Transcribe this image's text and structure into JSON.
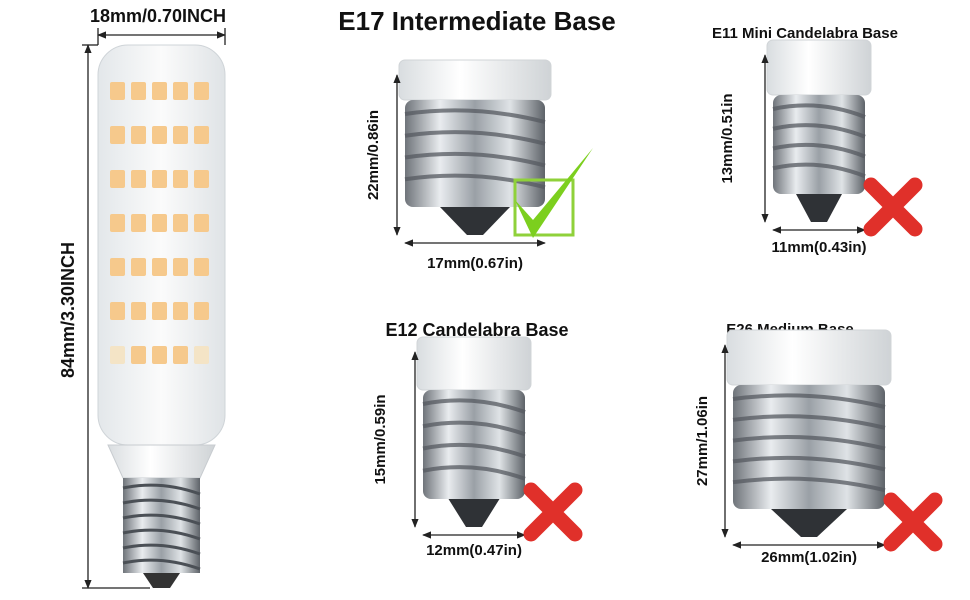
{
  "main_bulb": {
    "width_label": "18mm/0.70INCH",
    "height_label": "84mm/3.30INCH"
  },
  "bases": [
    {
      "title": "E17 Intermediate Base",
      "height_label": "22mm/0.86in",
      "width_label": "17mm(0.67in)",
      "compatible": true
    },
    {
      "title": "E11 Mini Candelabra Base",
      "height_label": "13mm/0.51in",
      "width_label": "11mm(0.43in)",
      "compatible": false
    },
    {
      "title": "E12 Candelabra Base",
      "height_label": "15mm/0.59in",
      "width_label": "12mm(0.47in)",
      "compatible": false
    },
    {
      "title": "E26 Medium Base",
      "height_label": "27mm/1.06in",
      "width_label": "26mm(1.02in)",
      "compatible": false
    }
  ]
}
